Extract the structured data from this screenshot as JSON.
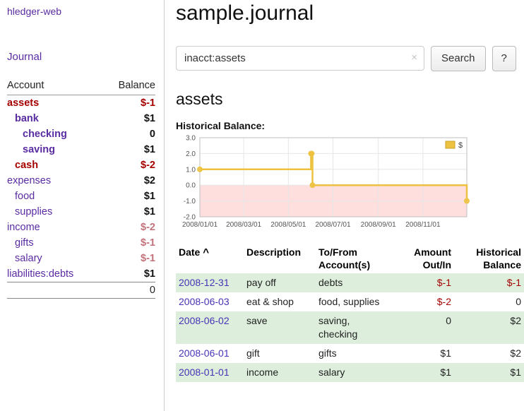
{
  "colors": {
    "link_purple": "#5a2ca2",
    "date_link": "#4733b5",
    "negative_strong": "#a40000",
    "negative_soft": "#c4727c",
    "row_shade_green": "#ddeedd",
    "chart_series": "#edc240",
    "chart_negative_region": "#ffdede"
  },
  "app": {
    "brand": "hledger-web",
    "nav_journal": "Journal"
  },
  "sidebar": {
    "table": {
      "col_account": "Account",
      "col_balance": "Balance"
    },
    "accounts": [
      {
        "label": "assets",
        "indent": 0,
        "bold": true,
        "label_color": "red",
        "balance": "$-1",
        "balance_color": "red",
        "balance_bold": true
      },
      {
        "label": "bank",
        "indent": 1,
        "bold": true,
        "label_color": "purple",
        "balance": "$1",
        "balance_color": "black",
        "balance_bold": true
      },
      {
        "label": "checking",
        "indent": 2,
        "bold": true,
        "label_color": "purple",
        "balance": "0",
        "balance_color": "black",
        "balance_bold": true
      },
      {
        "label": "saving",
        "indent": 2,
        "bold": true,
        "label_color": "purple",
        "balance": "$1",
        "balance_color": "black",
        "balance_bold": true
      },
      {
        "label": "cash",
        "indent": 1,
        "bold": true,
        "label_color": "red",
        "balance": "$-2",
        "balance_color": "red",
        "balance_bold": true
      },
      {
        "label": "expenses",
        "indent": 0,
        "bold": false,
        "label_color": "purple",
        "balance": "$2",
        "balance_color": "black",
        "balance_bold": true
      },
      {
        "label": "food",
        "indent": 1,
        "bold": false,
        "label_color": "purple",
        "balance": "$1",
        "balance_color": "black",
        "balance_bold": true
      },
      {
        "label": "supplies",
        "indent": 1,
        "bold": false,
        "label_color": "purple",
        "balance": "$1",
        "balance_color": "black",
        "balance_bold": true
      },
      {
        "label": "income",
        "indent": 0,
        "bold": false,
        "label_color": "purple",
        "balance": "$-2",
        "balance_color": "rose",
        "balance_bold": true
      },
      {
        "label": "gifts",
        "indent": 1,
        "bold": false,
        "label_color": "purple",
        "balance": "$-1",
        "balance_color": "rose",
        "balance_bold": true
      },
      {
        "label": "salary",
        "indent": 1,
        "bold": false,
        "label_color": "purple",
        "balance": "$-1",
        "balance_color": "rose",
        "balance_bold": true
      },
      {
        "label": "liabilities:debts",
        "indent": 0,
        "bold": false,
        "label_color": "purple",
        "balance": "$1",
        "balance_color": "black",
        "balance_bold": true
      }
    ],
    "total": "0"
  },
  "main": {
    "title": "sample.journal",
    "search": {
      "value": "inacct:assets",
      "clear_icon": "×",
      "button_label": "Search",
      "help_label": "?"
    },
    "account_heading": "assets",
    "chart_label": "Historical Balance:"
  },
  "chart_data": {
    "type": "line",
    "step": true,
    "title": "Historical Balance of assets",
    "series": [
      {
        "name": "$",
        "color": "#edc240",
        "points": [
          {
            "x": "2008-01-01",
            "y": 1
          },
          {
            "x": "2008-06-01",
            "y": 2
          },
          {
            "x": "2008-06-02",
            "y": 2
          },
          {
            "x": "2008-06-03",
            "y": 0
          },
          {
            "x": "2008-12-31",
            "y": -1
          }
        ]
      }
    ],
    "xlim": [
      "2008-01-01",
      "2008-12-31"
    ],
    "ylim": [
      -2,
      3
    ],
    "yticks": [
      3,
      2,
      1,
      0,
      -1,
      -2
    ],
    "ytick_labels": [
      "3.0",
      "2.0",
      "1.0",
      "0.0",
      "-1.0",
      "-2.0"
    ],
    "xticks": [
      "2008-01-01",
      "2008-03-01",
      "2008-05-01",
      "2008-07-01",
      "2008-09-01",
      "2008-11-01"
    ],
    "xtick_labels": [
      "2008/01/01",
      "2008/03/01",
      "2008/05/01",
      "2008/07/01",
      "2008/09/01",
      "2008/11/01"
    ],
    "legend": {
      "label": "$",
      "position": "top-right"
    },
    "grid": true,
    "negative_region_below": 0
  },
  "register": {
    "headers": {
      "date": "Date",
      "sort_icon": "^",
      "description": "Description",
      "tofrom": [
        "To/From",
        "Account(s)"
      ],
      "amount": [
        "Amount",
        "Out/In"
      ],
      "historical": [
        "Historical",
        "Balance"
      ]
    },
    "rows": [
      {
        "date": "2008-12-31",
        "description": "pay off",
        "accounts": "debts",
        "amount": "$-1",
        "amount_negative": true,
        "balance": "$-1",
        "balance_negative": true,
        "shade": true
      },
      {
        "date": "2008-06-03",
        "description": "eat & shop",
        "accounts": "food, supplies",
        "amount": "$-2",
        "amount_negative": true,
        "balance": "0",
        "balance_negative": false,
        "shade": false
      },
      {
        "date": "2008-06-02",
        "description": "save",
        "accounts": "saving, checking",
        "amount": "0",
        "amount_negative": false,
        "balance": "$2",
        "balance_negative": false,
        "shade": true
      },
      {
        "date": "2008-06-01",
        "description": "gift",
        "accounts": "gifts",
        "amount": "$1",
        "amount_negative": false,
        "balance": "$2",
        "balance_negative": false,
        "shade": false
      },
      {
        "date": "2008-01-01",
        "description": "income",
        "accounts": "salary",
        "amount": "$1",
        "amount_negative": false,
        "balance": "$1",
        "balance_negative": false,
        "shade": true
      }
    ]
  }
}
